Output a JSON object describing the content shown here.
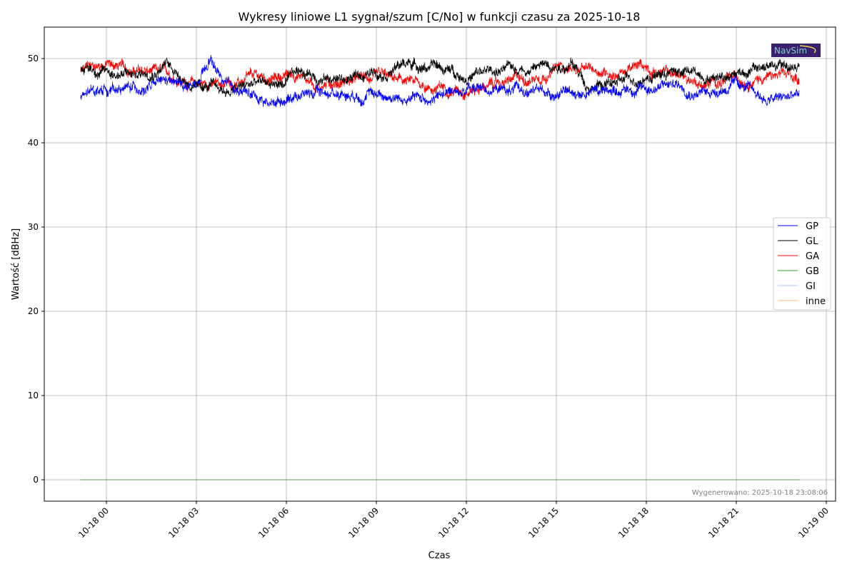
{
  "chart_data": {
    "type": "line",
    "title": "Wykresy liniowe L1 sygnał/szum [C/No] w funkcji czasu za 2025-10-18",
    "xlabel": "Czas",
    "ylabel": "Wartość [dBHz]",
    "ylim": [
      -2.5,
      53.8
    ],
    "xlim_hours": [
      -2.07,
      24.3
    ],
    "grid": true,
    "legend_position": "center-right",
    "yticks": [
      0,
      10,
      20,
      30,
      40,
      50
    ],
    "xticks": [
      {
        "hour": 0,
        "label": "10-18 00"
      },
      {
        "hour": 3,
        "label": "10-18 03"
      },
      {
        "hour": 6,
        "label": "10-18 06"
      },
      {
        "hour": 9,
        "label": "10-18 09"
      },
      {
        "hour": 12,
        "label": "10-18 12"
      },
      {
        "hour": 15,
        "label": "10-18 15"
      },
      {
        "hour": 18,
        "label": "10-18 18"
      },
      {
        "hour": 21,
        "label": "10-18 21"
      },
      {
        "hour": 24,
        "label": "10-19 00"
      }
    ],
    "x_hours": [
      -0.86,
      0,
      1,
      2,
      3,
      3.5,
      4,
      5,
      5.5,
      6,
      6.5,
      7,
      8,
      9,
      10,
      11,
      12,
      13,
      14,
      15,
      15.5,
      16,
      17,
      18,
      19,
      20,
      21,
      22,
      23.1
    ],
    "series": [
      {
        "name": "GP",
        "color": "#0000ff",
        "values": [
          45.5,
          46.5,
          46.5,
          47,
          46.5,
          49.5,
          46.5,
          45.5,
          44.8,
          45.5,
          46,
          46,
          46,
          46,
          45,
          45.5,
          46.5,
          46.5,
          46,
          46,
          46,
          46,
          46.5,
          46.5,
          47,
          46,
          47,
          45,
          45.5
        ]
      },
      {
        "name": "GL",
        "color": "#000000",
        "values": [
          49,
          48.5,
          48,
          49.5,
          46.5,
          46.5,
          46,
          47,
          47,
          47,
          48.5,
          48,
          47.5,
          48.5,
          49.5,
          49,
          48,
          48.5,
          49,
          49.5,
          49.5,
          47,
          47,
          48,
          48.5,
          48,
          48.5,
          49,
          49
        ]
      },
      {
        "name": "GA",
        "color": "#ff0000",
        "values": [
          48.5,
          49.5,
          48.5,
          48,
          47,
          47,
          47,
          47.5,
          47.5,
          48,
          48,
          47,
          47.5,
          47.5,
          47,
          46.5,
          46.5,
          47,
          47.5,
          49,
          49,
          48.5,
          48.5,
          49,
          48,
          47,
          47.5,
          48,
          47.5
        ]
      },
      {
        "name": "GB",
        "color": "#2ca02c",
        "values": [
          0,
          0,
          0,
          0,
          0,
          0,
          0,
          0,
          0,
          0,
          0,
          0,
          0,
          0,
          0,
          0,
          0,
          0,
          0,
          0,
          0,
          0,
          0,
          0,
          0,
          0,
          0,
          0,
          0
        ]
      },
      {
        "name": "GI",
        "color": "#aec7e8",
        "values": [
          0,
          0,
          0,
          0,
          0,
          0,
          0,
          0,
          0,
          0,
          0,
          0,
          0,
          0,
          0,
          0,
          0,
          0,
          0,
          0,
          0,
          0,
          0,
          0,
          0,
          0,
          0,
          0,
          0
        ]
      },
      {
        "name": "inne",
        "color": "#ffbb78",
        "values": [
          0,
          0,
          0,
          0,
          0,
          0,
          0,
          0,
          0,
          0,
          0,
          0,
          0,
          0,
          0,
          0,
          0,
          0,
          0,
          0,
          0,
          0,
          0,
          0,
          0,
          0,
          0,
          0,
          0
        ]
      }
    ],
    "footnote": "Wygenerowano: 2025-10-18 23:08:06",
    "logo_text": "NavSim"
  }
}
